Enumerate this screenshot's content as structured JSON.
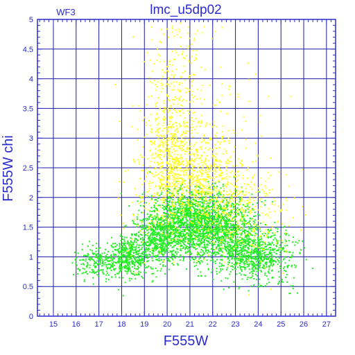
{
  "chart_data": {
    "type": "scatter",
    "title": "lmc_u5dp02",
    "tag": "WF3",
    "xlabel": "F555W",
    "ylabel": "F555W  chi",
    "xlim": [
      14.3,
      27.4
    ],
    "ylim": [
      0,
      5
    ],
    "xticks": [
      15,
      16,
      17,
      18,
      19,
      20,
      21,
      22,
      23,
      24,
      25,
      26,
      27
    ],
    "yticks": [
      0,
      0.5,
      1,
      1.5,
      2,
      2.5,
      3,
      3.5,
      4,
      4.5,
      5
    ],
    "grid": true,
    "colors": {
      "axis": "#2a2ad0",
      "grid": "#1a1aa0",
      "green": "#22ee22",
      "yellow": "#ffff22"
    },
    "series": [
      {
        "color": "green",
        "clusters": [
          {
            "x": 16.9,
            "y": 0.92,
            "sx": 0.55,
            "sy": 0.14,
            "n": 220
          },
          {
            "x": 18.3,
            "y": 1.0,
            "sx": 0.45,
            "sy": 0.16,
            "n": 420
          },
          {
            "x": 19.6,
            "y": 1.3,
            "sx": 0.55,
            "sy": 0.22,
            "n": 550
          },
          {
            "x": 21.0,
            "y": 1.55,
            "sx": 0.9,
            "sy": 0.25,
            "n": 1050
          },
          {
            "x": 22.6,
            "y": 1.35,
            "sx": 0.85,
            "sy": 0.28,
            "n": 850
          },
          {
            "x": 23.8,
            "y": 1.0,
            "sx": 0.6,
            "sy": 0.2,
            "n": 450
          },
          {
            "x": 21.3,
            "y": 1.85,
            "sx": 1.1,
            "sy": 0.18,
            "n": 380
          },
          {
            "x": 24.9,
            "y": 1.05,
            "sx": 0.5,
            "sy": 0.3,
            "n": 120
          }
        ]
      },
      {
        "color": "yellow",
        "clusters": [
          {
            "x": 20.0,
            "y": 2.6,
            "sx": 0.55,
            "sy": 0.5,
            "n": 350
          },
          {
            "x": 21.2,
            "y": 2.3,
            "sx": 0.9,
            "sy": 0.4,
            "n": 550
          },
          {
            "x": 20.3,
            "y": 3.4,
            "sx": 0.6,
            "sy": 0.6,
            "n": 200
          },
          {
            "x": 20.6,
            "y": 4.3,
            "sx": 0.7,
            "sy": 0.35,
            "n": 90
          },
          {
            "x": 22.6,
            "y": 2.0,
            "sx": 1.0,
            "sy": 0.4,
            "n": 280
          },
          {
            "x": 23.9,
            "y": 1.6,
            "sx": 1.0,
            "sy": 0.45,
            "n": 130
          },
          {
            "x": 19.1,
            "y": 2.0,
            "sx": 0.6,
            "sy": 0.6,
            "n": 90
          },
          {
            "x": 21.8,
            "y": 3.0,
            "sx": 1.3,
            "sy": 0.8,
            "n": 140
          }
        ]
      }
    ]
  }
}
